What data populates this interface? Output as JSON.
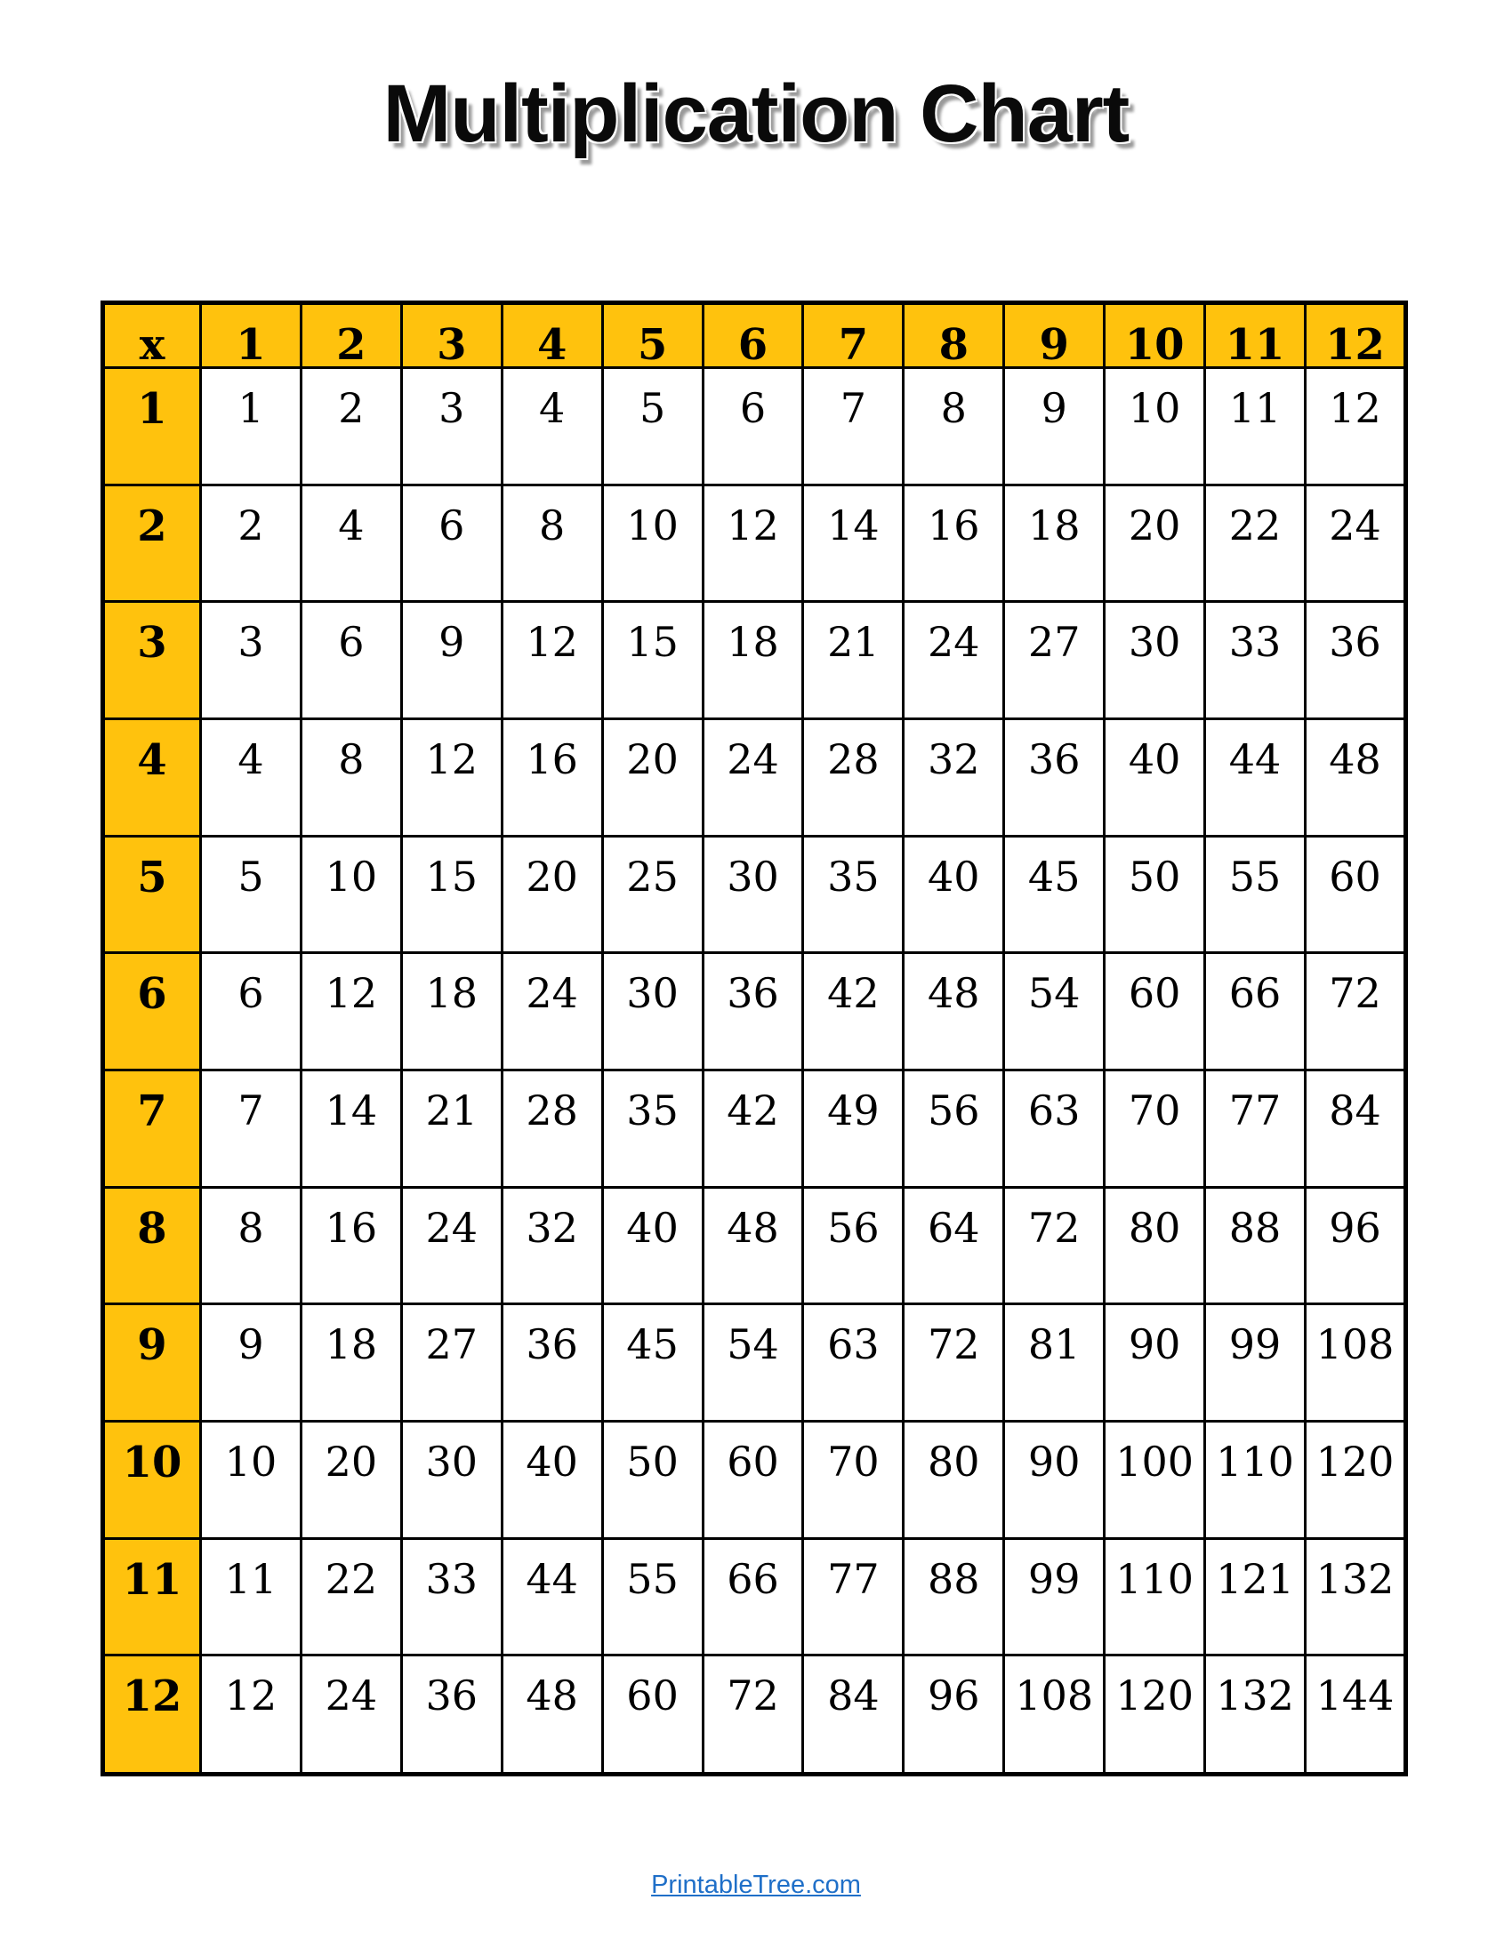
{
  "title": {
    "text": "Multiplication Chart"
  },
  "table": {
    "corner_label": "x",
    "header": [
      "x",
      "1",
      "2",
      "3",
      "4",
      "5",
      "6",
      "7",
      "8",
      "9",
      "10",
      "11",
      "12"
    ],
    "rows": [
      {
        "label": "1",
        "values": [
          1,
          2,
          3,
          4,
          5,
          6,
          7,
          8,
          9,
          10,
          11,
          12
        ]
      },
      {
        "label": "2",
        "values": [
          2,
          4,
          6,
          8,
          10,
          12,
          14,
          16,
          18,
          20,
          22,
          24
        ]
      },
      {
        "label": "3",
        "values": [
          3,
          6,
          9,
          12,
          15,
          18,
          21,
          24,
          27,
          30,
          33,
          36
        ]
      },
      {
        "label": "4",
        "values": [
          4,
          8,
          12,
          16,
          20,
          24,
          28,
          32,
          36,
          40,
          44,
          48
        ]
      },
      {
        "label": "5",
        "values": [
          5,
          10,
          15,
          20,
          25,
          30,
          35,
          40,
          45,
          50,
          55,
          60
        ]
      },
      {
        "label": "6",
        "values": [
          6,
          12,
          18,
          24,
          30,
          36,
          42,
          48,
          54,
          60,
          66,
          72
        ]
      },
      {
        "label": "7",
        "values": [
          7,
          14,
          21,
          28,
          35,
          42,
          49,
          56,
          63,
          70,
          77,
          84
        ]
      },
      {
        "label": "8",
        "values": [
          8,
          16,
          24,
          32,
          40,
          48,
          56,
          64,
          72,
          80,
          88,
          96
        ]
      },
      {
        "label": "9",
        "values": [
          9,
          18,
          27,
          36,
          45,
          54,
          63,
          72,
          81,
          90,
          99,
          108
        ]
      },
      {
        "label": "10",
        "values": [
          10,
          20,
          30,
          40,
          50,
          60,
          70,
          80,
          90,
          100,
          110,
          120
        ]
      },
      {
        "label": "11",
        "values": [
          11,
          22,
          33,
          44,
          55,
          66,
          77,
          88,
          99,
          110,
          121,
          132
        ]
      },
      {
        "label": "12",
        "values": [
          12,
          24,
          36,
          48,
          60,
          72,
          84,
          96,
          108,
          120,
          132,
          144
        ]
      }
    ],
    "colors": {
      "header_bg": "#FFC20D",
      "cell_bg": "#FFFFFF",
      "border": "#000000",
      "text": "#000000"
    }
  },
  "footer": {
    "link_text": "PrintableTree.com",
    "link_color": "#1F6FC8"
  }
}
